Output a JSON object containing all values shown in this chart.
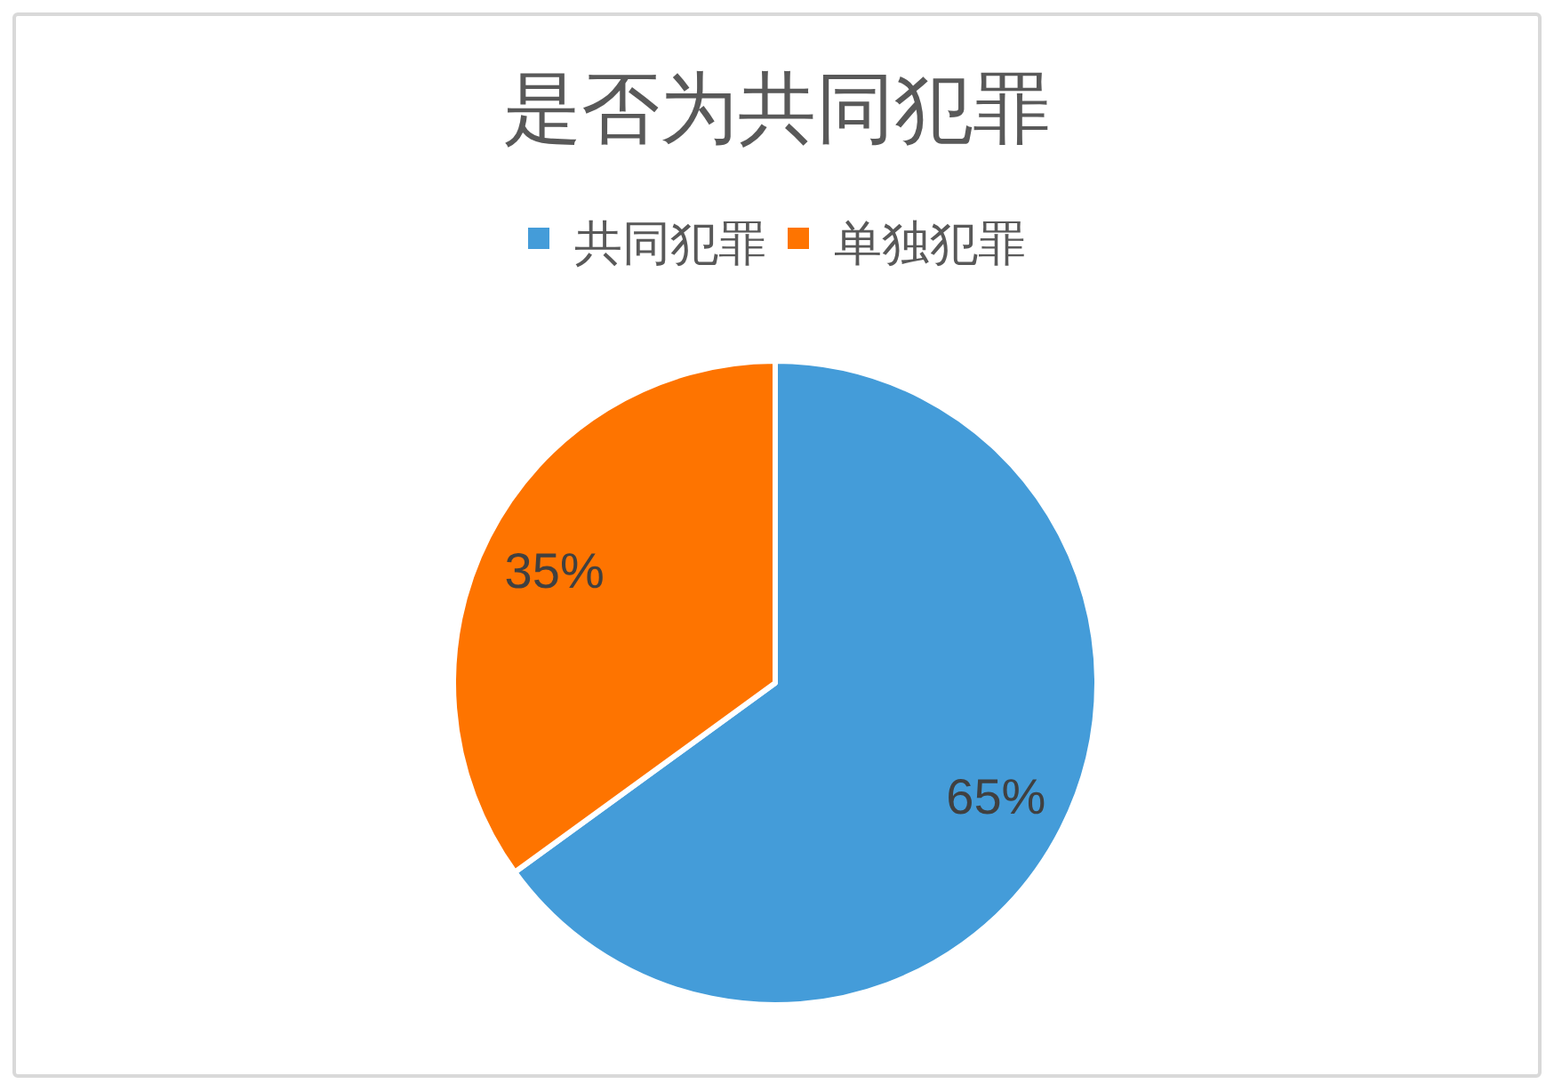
{
  "chart_data": {
    "type": "pie",
    "title": "是否为共同犯罪",
    "categories": [
      "共同犯罪",
      "单独犯罪"
    ],
    "values": [
      65,
      35
    ],
    "colors": [
      "#449cd9",
      "#fe7400"
    ],
    "value_labels": [
      "65%",
      "35%"
    ],
    "legend": "top"
  }
}
